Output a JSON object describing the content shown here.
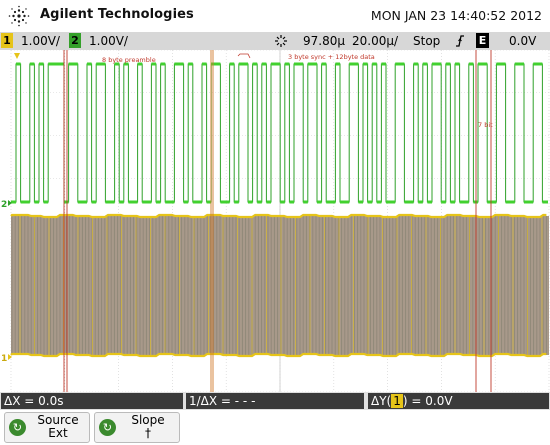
{
  "title_bar": {
    "brand": "Agilent Technologies",
    "datetime": "MON JAN 23 14:40:52 2012"
  },
  "status_bar": {
    "ch1": {
      "number": "1",
      "scale": "1.00V/",
      "color": "#e6c419"
    },
    "ch2": {
      "number": "2",
      "scale": "1.00V/",
      "color": "#34a02a"
    },
    "trigger_icon": "trigger-arrow-icon",
    "time_offset": "97.80µ",
    "timebase": "20.00µ/",
    "run_state": "Stop",
    "trigger_slope_icon": "rising-edge-icon",
    "trigger_source": "E",
    "trigger_level": "0.0V"
  },
  "screen": {
    "annotations": {
      "preamble": "8 byte preamble",
      "sync": "3 byte sync + 12byte data",
      "bits": "7 bit"
    },
    "ch2_marker": "2",
    "ch1_marker": "1",
    "colors": {
      "ch1": "#e6c419",
      "ch2": "#34c22a",
      "annotation": "#c0392b"
    }
  },
  "measurements": {
    "delta_x": "ΔX = 0.0s",
    "inv_delta_x": "1/ΔX = - - -",
    "delta_y_prefix": "ΔY(",
    "delta_y_channel": "1",
    "delta_y_suffix": ") = 0.0V"
  },
  "softkeys": [
    {
      "line1": "Source",
      "line2": "Ext",
      "icon": "circular-arrow-icon"
    },
    {
      "line1": "Slope",
      "line2": "†",
      "icon": "circular-arrow-icon"
    }
  ]
}
